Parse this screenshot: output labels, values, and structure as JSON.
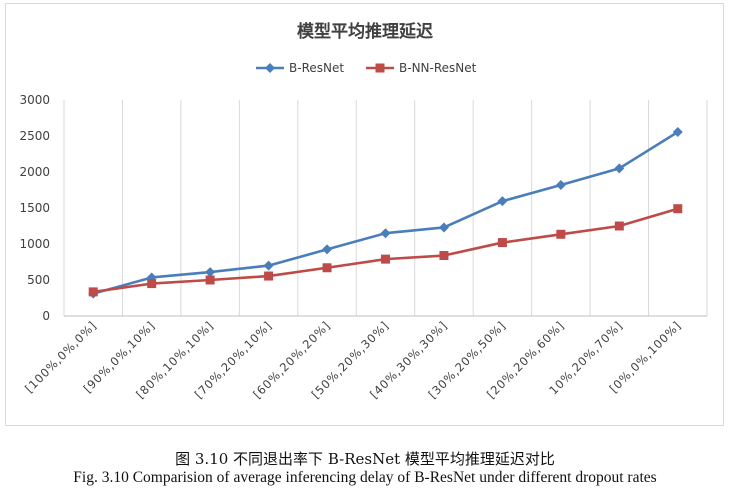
{
  "chart_data": {
    "type": "line",
    "title": "模型平均推理延迟",
    "categories": [
      "[100%,0%,0%]",
      "[90%,0%,10%]",
      "[80%,10%,10%]",
      "[70%,20%,10%]",
      "[60%,20%,20%]",
      "[50%,20%,30%]",
      "[40%,30%,30%]",
      "[30%,20%,50%]",
      "[20%,20%,60%]",
      "10%,20%,70%]",
      "[0%,0%,100%]"
    ],
    "series": [
      {
        "name": "B-ResNet",
        "color": "#4a7ebb",
        "marker": "diamond",
        "values": [
          310,
          535,
          610,
          700,
          925,
          1150,
          1230,
          1595,
          1820,
          2050,
          2555
        ]
      },
      {
        "name": "B-NN-ResNet",
        "color": "#be4b48",
        "marker": "square",
        "values": [
          335,
          450,
          500,
          555,
          670,
          790,
          840,
          1020,
          1135,
          1250,
          1490
        ]
      }
    ],
    "ylim": [
      0,
      3000
    ],
    "yticks": [
      "0",
      "500",
      "1000",
      "1500",
      "2000",
      "2500",
      "3000"
    ],
    "grid": "vertical",
    "legend": "top"
  },
  "caption": {
    "cn": "图 3.10  不同退出率下 B-ResNet 模型平均推理延迟对比",
    "en": "Fig. 3.10 Comparision of average inferencing delay of B-ResNet under different dropout rates"
  }
}
